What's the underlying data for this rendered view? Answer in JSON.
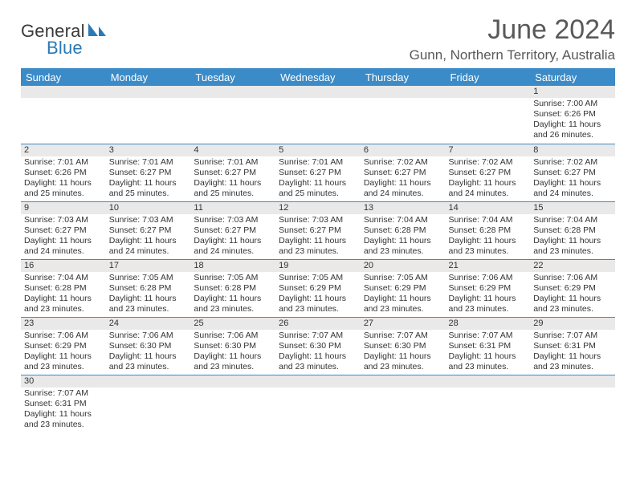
{
  "brand": {
    "word1": "General",
    "word2": "Blue",
    "sail_color": "#2a7ab8"
  },
  "title": "June 2024",
  "location": "Gunn, Northern Territory, Australia",
  "colors": {
    "header_bg": "#3b8bc8",
    "header_text": "#ffffff",
    "daynum_bg": "#e9e9e9",
    "cell_border": "#3b8bc8",
    "text": "#333333",
    "title_color": "#595959"
  },
  "weekdays": [
    "Sunday",
    "Monday",
    "Tuesday",
    "Wednesday",
    "Thursday",
    "Friday",
    "Saturday"
  ],
  "weeks": [
    [
      null,
      null,
      null,
      null,
      null,
      null,
      {
        "n": "1",
        "sunrise": "7:00 AM",
        "sunset": "6:26 PM",
        "daylight": "11 hours and 26 minutes."
      }
    ],
    [
      {
        "n": "2",
        "sunrise": "7:01 AM",
        "sunset": "6:26 PM",
        "daylight": "11 hours and 25 minutes."
      },
      {
        "n": "3",
        "sunrise": "7:01 AM",
        "sunset": "6:27 PM",
        "daylight": "11 hours and 25 minutes."
      },
      {
        "n": "4",
        "sunrise": "7:01 AM",
        "sunset": "6:27 PM",
        "daylight": "11 hours and 25 minutes."
      },
      {
        "n": "5",
        "sunrise": "7:01 AM",
        "sunset": "6:27 PM",
        "daylight": "11 hours and 25 minutes."
      },
      {
        "n": "6",
        "sunrise": "7:02 AM",
        "sunset": "6:27 PM",
        "daylight": "11 hours and 24 minutes."
      },
      {
        "n": "7",
        "sunrise": "7:02 AM",
        "sunset": "6:27 PM",
        "daylight": "11 hours and 24 minutes."
      },
      {
        "n": "8",
        "sunrise": "7:02 AM",
        "sunset": "6:27 PM",
        "daylight": "11 hours and 24 minutes."
      }
    ],
    [
      {
        "n": "9",
        "sunrise": "7:03 AM",
        "sunset": "6:27 PM",
        "daylight": "11 hours and 24 minutes."
      },
      {
        "n": "10",
        "sunrise": "7:03 AM",
        "sunset": "6:27 PM",
        "daylight": "11 hours and 24 minutes."
      },
      {
        "n": "11",
        "sunrise": "7:03 AM",
        "sunset": "6:27 PM",
        "daylight": "11 hours and 24 minutes."
      },
      {
        "n": "12",
        "sunrise": "7:03 AM",
        "sunset": "6:27 PM",
        "daylight": "11 hours and 23 minutes."
      },
      {
        "n": "13",
        "sunrise": "7:04 AM",
        "sunset": "6:28 PM",
        "daylight": "11 hours and 23 minutes."
      },
      {
        "n": "14",
        "sunrise": "7:04 AM",
        "sunset": "6:28 PM",
        "daylight": "11 hours and 23 minutes."
      },
      {
        "n": "15",
        "sunrise": "7:04 AM",
        "sunset": "6:28 PM",
        "daylight": "11 hours and 23 minutes."
      }
    ],
    [
      {
        "n": "16",
        "sunrise": "7:04 AM",
        "sunset": "6:28 PM",
        "daylight": "11 hours and 23 minutes."
      },
      {
        "n": "17",
        "sunrise": "7:05 AM",
        "sunset": "6:28 PM",
        "daylight": "11 hours and 23 minutes."
      },
      {
        "n": "18",
        "sunrise": "7:05 AM",
        "sunset": "6:28 PM",
        "daylight": "11 hours and 23 minutes."
      },
      {
        "n": "19",
        "sunrise": "7:05 AM",
        "sunset": "6:29 PM",
        "daylight": "11 hours and 23 minutes."
      },
      {
        "n": "20",
        "sunrise": "7:05 AM",
        "sunset": "6:29 PM",
        "daylight": "11 hours and 23 minutes."
      },
      {
        "n": "21",
        "sunrise": "7:06 AM",
        "sunset": "6:29 PM",
        "daylight": "11 hours and 23 minutes."
      },
      {
        "n": "22",
        "sunrise": "7:06 AM",
        "sunset": "6:29 PM",
        "daylight": "11 hours and 23 minutes."
      }
    ],
    [
      {
        "n": "23",
        "sunrise": "7:06 AM",
        "sunset": "6:29 PM",
        "daylight": "11 hours and 23 minutes."
      },
      {
        "n": "24",
        "sunrise": "7:06 AM",
        "sunset": "6:30 PM",
        "daylight": "11 hours and 23 minutes."
      },
      {
        "n": "25",
        "sunrise": "7:06 AM",
        "sunset": "6:30 PM",
        "daylight": "11 hours and 23 minutes."
      },
      {
        "n": "26",
        "sunrise": "7:07 AM",
        "sunset": "6:30 PM",
        "daylight": "11 hours and 23 minutes."
      },
      {
        "n": "27",
        "sunrise": "7:07 AM",
        "sunset": "6:30 PM",
        "daylight": "11 hours and 23 minutes."
      },
      {
        "n": "28",
        "sunrise": "7:07 AM",
        "sunset": "6:31 PM",
        "daylight": "11 hours and 23 minutes."
      },
      {
        "n": "29",
        "sunrise": "7:07 AM",
        "sunset": "6:31 PM",
        "daylight": "11 hours and 23 minutes."
      }
    ],
    [
      {
        "n": "30",
        "sunrise": "7:07 AM",
        "sunset": "6:31 PM",
        "daylight": "11 hours and 23 minutes."
      },
      null,
      null,
      null,
      null,
      null,
      null
    ]
  ],
  "labels": {
    "sunrise": "Sunrise:",
    "sunset": "Sunset:",
    "daylight": "Daylight:"
  }
}
